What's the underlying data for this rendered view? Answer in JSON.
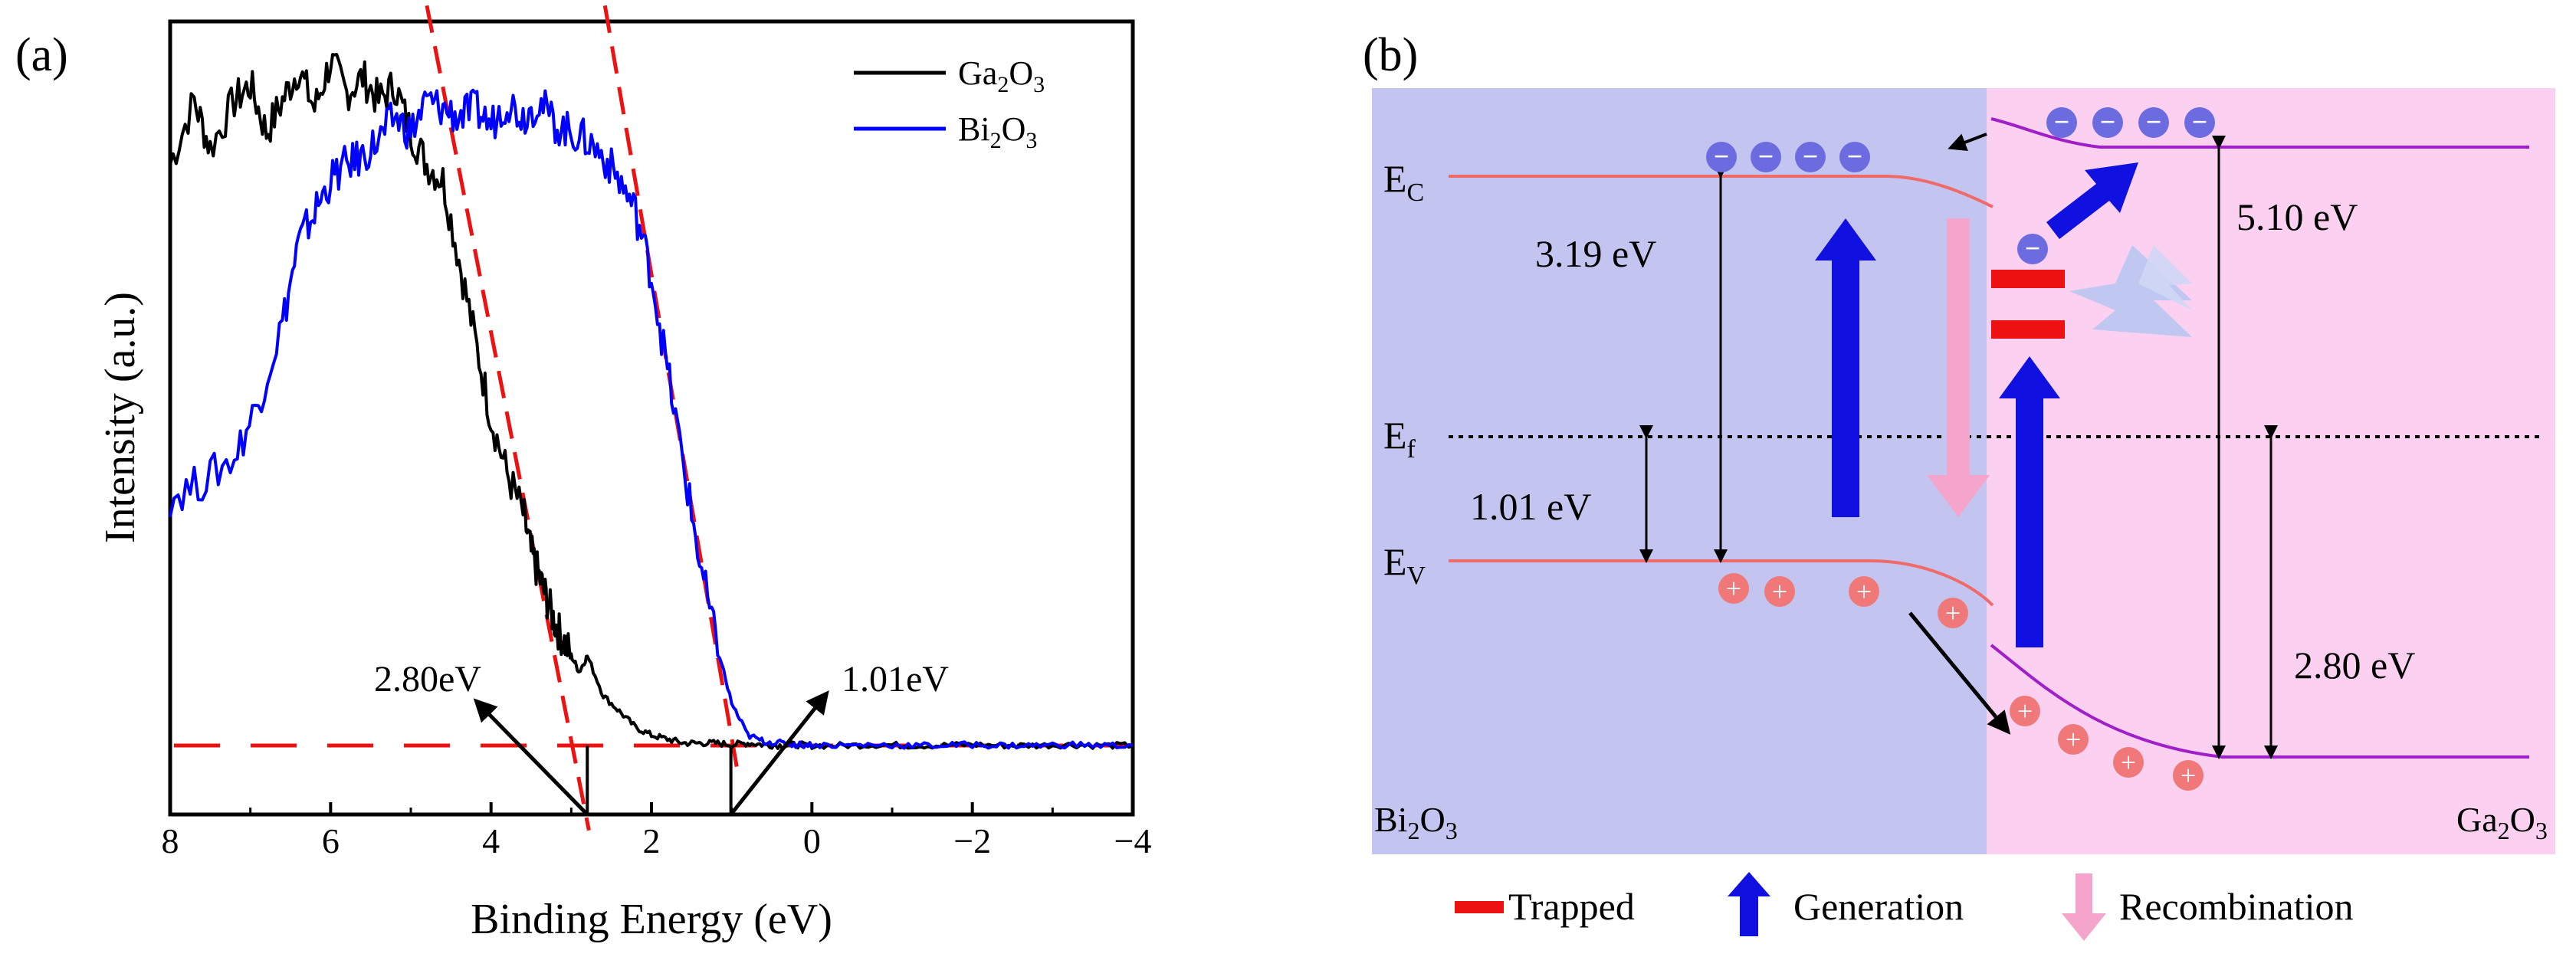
{
  "chart_data": [
    {
      "type": "line",
      "panel_label": "(a)",
      "xlabel": "Binding Energy (eV)",
      "ylabel": "Intensity (a.u.)",
      "xlim": [
        8,
        -4
      ],
      "x_ticks": [
        8,
        6,
        4,
        2,
        0,
        -2,
        -4
      ],
      "x_tick_labels": [
        "8",
        "6",
        "4",
        "2",
        "0",
        "−2",
        "−4"
      ],
      "ylim": [
        0,
        1
      ],
      "series": [
        {
          "name": "Ga2O3",
          "legend_main": "Ga",
          "legend_sub1": "2",
          "legend_mid": "O",
          "legend_sub2": "3",
          "color": "#000000",
          "x": [
            8.0,
            7.7,
            7.5,
            7.2,
            7.0,
            6.8,
            6.6,
            6.4,
            6.2,
            6.0,
            5.8,
            5.6,
            5.4,
            5.2,
            5.0,
            4.8,
            4.6,
            4.4,
            4.2,
            4.0,
            3.8,
            3.6,
            3.5,
            3.4,
            3.3,
            3.2,
            3.1,
            3.0,
            2.9,
            2.8,
            2.6,
            2.4,
            2.2,
            2.0,
            1.8,
            1.6,
            1.4,
            1.2,
            1.0,
            0.8,
            0.6,
            0.4,
            0.2,
            0.0,
            -0.4,
            -0.8,
            -1.2,
            -1.6,
            -2.0,
            -2.4,
            -2.8,
            -3.2,
            -3.6,
            -4.0
          ],
          "y": [
            0.82,
            0.9,
            0.84,
            0.9,
            0.92,
            0.86,
            0.9,
            0.94,
            0.89,
            0.95,
            0.91,
            0.93,
            0.9,
            0.92,
            0.86,
            0.82,
            0.8,
            0.7,
            0.6,
            0.5,
            0.43,
            0.38,
            0.33,
            0.3,
            0.27,
            0.24,
            0.22,
            0.2,
            0.18,
            0.2,
            0.15,
            0.13,
            0.11,
            0.1,
            0.095,
            0.09,
            0.09,
            0.09,
            0.088,
            0.09,
            0.088,
            0.087,
            0.088,
            0.087,
            0.087,
            0.088,
            0.087,
            0.087,
            0.088,
            0.087,
            0.087,
            0.088,
            0.087,
            0.087
          ]
        },
        {
          "name": "Bi2O3",
          "legend_main": "Bi",
          "legend_sub1": "2",
          "legend_mid": "O",
          "legend_sub2": "3",
          "color": "#0000ff",
          "x": [
            8.0,
            7.6,
            7.2,
            6.9,
            6.6,
            6.4,
            6.2,
            6.0,
            5.8,
            5.6,
            5.4,
            5.2,
            5.0,
            4.8,
            4.6,
            4.4,
            4.2,
            4.0,
            3.8,
            3.6,
            3.4,
            3.2,
            3.0,
            2.8,
            2.6,
            2.4,
            2.2,
            2.0,
            1.8,
            1.6,
            1.4,
            1.2,
            1.0,
            0.8,
            0.6,
            0.4,
            0.2,
            0.0,
            -0.4,
            -0.8,
            -1.2,
            -1.6,
            -2.0,
            -2.4,
            -2.8,
            -3.2,
            -3.6,
            -4.0
          ],
          "y": [
            0.4,
            0.42,
            0.45,
            0.52,
            0.62,
            0.72,
            0.76,
            0.8,
            0.82,
            0.83,
            0.85,
            0.88,
            0.86,
            0.9,
            0.89,
            0.88,
            0.89,
            0.87,
            0.9,
            0.88,
            0.9,
            0.87,
            0.86,
            0.85,
            0.83,
            0.8,
            0.76,
            0.68,
            0.56,
            0.44,
            0.32,
            0.22,
            0.14,
            0.1,
            0.092,
            0.09,
            0.088,
            0.088,
            0.087,
            0.088,
            0.087,
            0.087,
            0.088,
            0.087,
            0.087,
            0.088,
            0.087,
            0.087
          ]
        }
      ],
      "baseline_y": 0.087,
      "fit_lines": [
        {
          "x1": 4.8,
          "y1": 1.02,
          "x2": 2.78,
          "y2": -0.02
        },
        {
          "x1": 2.58,
          "y1": 1.02,
          "x2": 0.92,
          "y2": 0.05
        }
      ],
      "annotations": [
        {
          "text": "2.80eV",
          "at_x": 2.8
        },
        {
          "text": "1.01eV",
          "at_x": 1.01
        }
      ]
    }
  ],
  "diagram": {
    "panel_label": "(b)",
    "ec": {
      "main": "E",
      "sub": "C"
    },
    "ef": {
      "main": "E",
      "sub": "f"
    },
    "ev": {
      "main": "E",
      "sub": "V"
    },
    "gap_bi": "3.19 eV",
    "gap_fermi": "1.01 eV",
    "gap_ga": "5.10 eV",
    "gap_ga_vb": "2.80 eV",
    "left_material": {
      "main": "Bi",
      "sub1": "2",
      "mid": "O",
      "sub2": "3"
    },
    "right_material": {
      "main": "Ga",
      "sub1": "2",
      "mid": "O",
      "sub2": "3"
    },
    "electron_symbol": "−",
    "hole_symbol": "+",
    "legend": {
      "trapped": "Trapped",
      "generation": "Generation",
      "recombination": "Recombination"
    },
    "colors": {
      "bi_region": "#c3c5f0",
      "ga_region": "#fbd0f0",
      "bi_band": "#f06a6a",
      "ga_band": "#a020c8",
      "electron": "#6c6ce0",
      "hole": "#f07878",
      "generation": "#1010e0",
      "recombination": "#f5a5cc",
      "trapped": "#ee1111"
    }
  }
}
